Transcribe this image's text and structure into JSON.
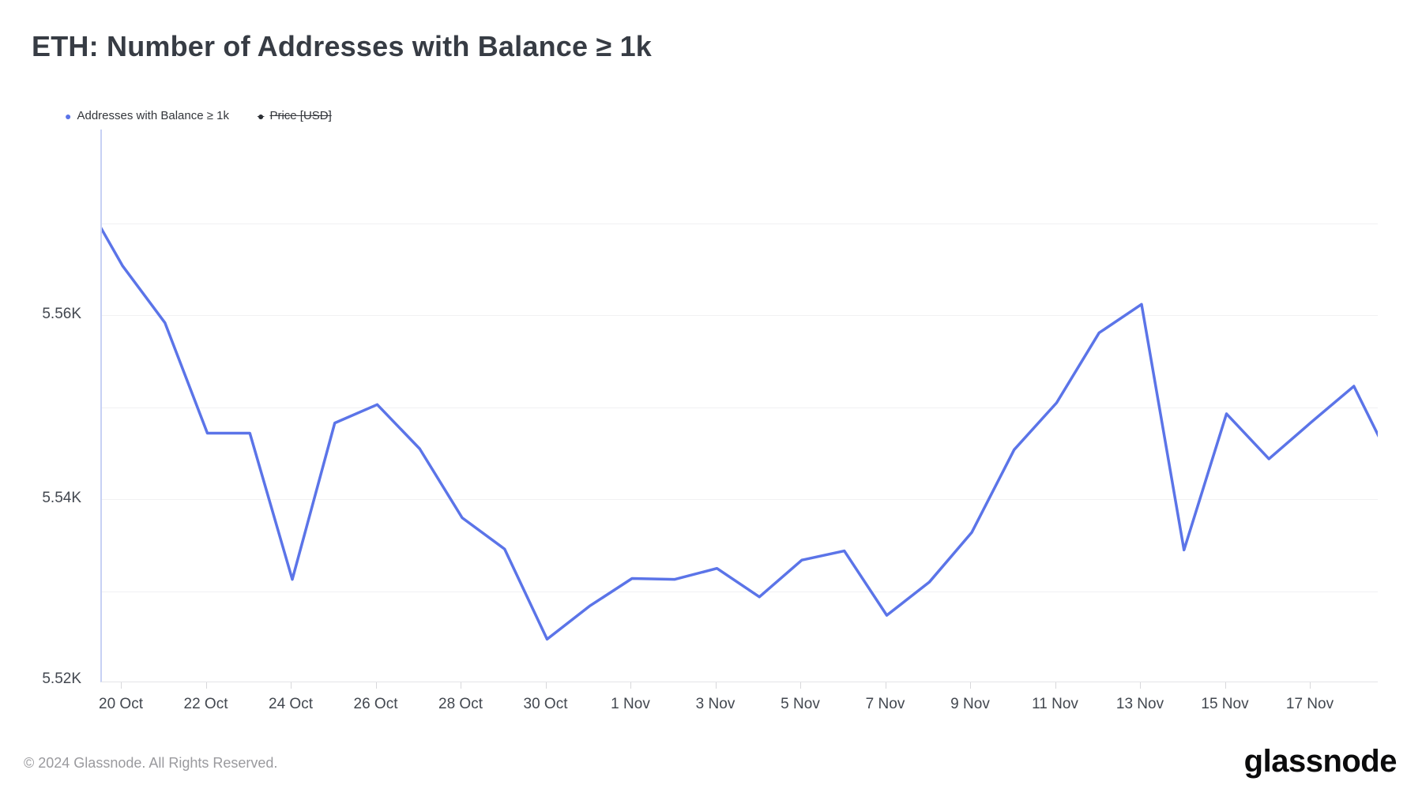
{
  "title": "ETH: Number of Addresses with Balance ≥ 1k",
  "legend": {
    "items": [
      {
        "label": "Addresses with Balance ≥ 1k",
        "color": "#5b74e8",
        "active": true
      },
      {
        "label": "Price [USD]",
        "color": "#272b31",
        "active": false
      }
    ]
  },
  "chart_data": {
    "type": "line",
    "title": "ETH: Number of Addresses with Balance ≥ 1k",
    "series_name": "Addresses with Balance ≥ 1k",
    "x": [
      "19 Oct",
      "20 Oct",
      "21 Oct",
      "22 Oct",
      "23 Oct",
      "24 Oct",
      "25 Oct",
      "26 Oct",
      "27 Oct",
      "28 Oct",
      "29 Oct",
      "30 Oct",
      "31 Oct",
      "1 Nov",
      "2 Nov",
      "3 Nov",
      "4 Nov",
      "5 Nov",
      "6 Nov",
      "7 Nov",
      "8 Nov",
      "9 Nov",
      "10 Nov",
      "11 Nov",
      "12 Nov",
      "13 Nov",
      "14 Nov",
      "15 Nov",
      "16 Nov",
      "17 Nov",
      "18 Nov",
      "19 Nov"
    ],
    "values": [
      5573.5,
      5565.4,
      5559.2,
      5547.2,
      5547.2,
      5531.3,
      5548.3,
      5550.3,
      5545.5,
      5538.0,
      5534.6,
      5524.8,
      5528.4,
      5531.4,
      5531.3,
      5532.5,
      5529.4,
      5533.4,
      5534.4,
      5527.4,
      5531.0,
      5536.4,
      5545.4,
      5550.5,
      5558.1,
      5561.2,
      5534.5,
      5549.3,
      5544.4,
      5548.4,
      5552.3,
      5543.0
    ],
    "unit": "addresses",
    "ylim": [
      5520.2,
      5580.2
    ],
    "yticks": [
      {
        "label": "5.56K",
        "value": 5560
      },
      {
        "label": "5.54K",
        "value": 5540
      },
      {
        "label": "5.52K",
        "value": 5520
      }
    ],
    "gridline_values": [
      5570,
      5560,
      5550,
      5540,
      5530
    ],
    "xticks": [
      {
        "index": 1,
        "label": "20 Oct"
      },
      {
        "index": 3,
        "label": "22 Oct"
      },
      {
        "index": 5,
        "label": "24 Oct"
      },
      {
        "index": 7,
        "label": "26 Oct"
      },
      {
        "index": 9,
        "label": "28 Oct"
      },
      {
        "index": 11,
        "label": "30 Oct"
      },
      {
        "index": 13,
        "label": "1 Nov"
      },
      {
        "index": 15,
        "label": "3 Nov"
      },
      {
        "index": 17,
        "label": "5 Nov"
      },
      {
        "index": 19,
        "label": "7 Nov"
      },
      {
        "index": 21,
        "label": "9 Nov"
      },
      {
        "index": 23,
        "label": "11 Nov"
      },
      {
        "index": 25,
        "label": "13 Nov"
      },
      {
        "index": 27,
        "label": "15 Nov"
      },
      {
        "index": 29,
        "label": "17 Nov"
      }
    ],
    "line_color": "#5b74e8",
    "grid": "horizontal",
    "legend_position": "top-left"
  },
  "footer": {
    "copyright": "© 2024 Glassnode. All Rights Reserved.",
    "brand": "glassnode"
  }
}
